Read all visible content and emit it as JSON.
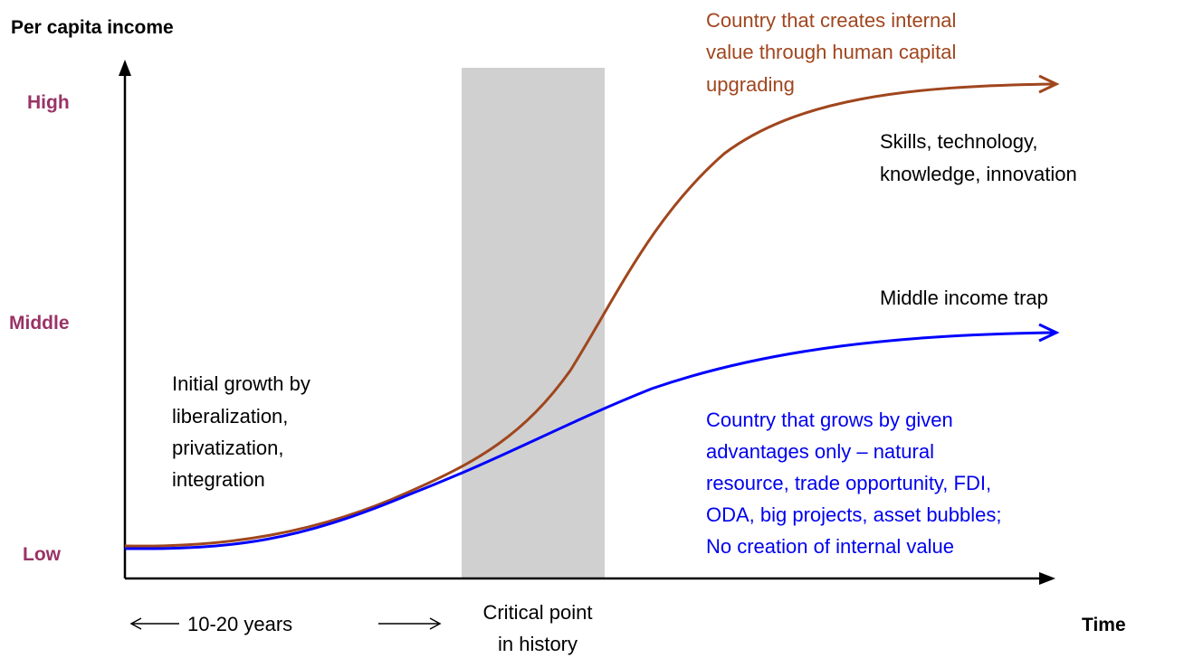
{
  "y_axis_label": "Per capita income",
  "x_axis_label": "Time",
  "levels": [
    "High",
    "Middle",
    "Low"
  ],
  "period_label": "10-20 years",
  "critical_point": [
    "Critical point",
    "in history"
  ],
  "initial_growth": [
    "Initial growth by",
    "liberalization,",
    "privatization,",
    "integration"
  ],
  "upper_curve_label": [
    "Country that creates internal",
    "value through human capital",
    "upgrading"
  ],
  "upper_curve_note": [
    "Skills, technology,",
    "knowledge, innovation"
  ],
  "lower_curve_note": "Middle income trap",
  "lower_curve_label": [
    "Country that grows by given",
    "advantages only – natural",
    "resource, trade opportunity, FDI,",
    "ODA, big projects, asset bubbles;",
    "No creation of internal value"
  ]
}
